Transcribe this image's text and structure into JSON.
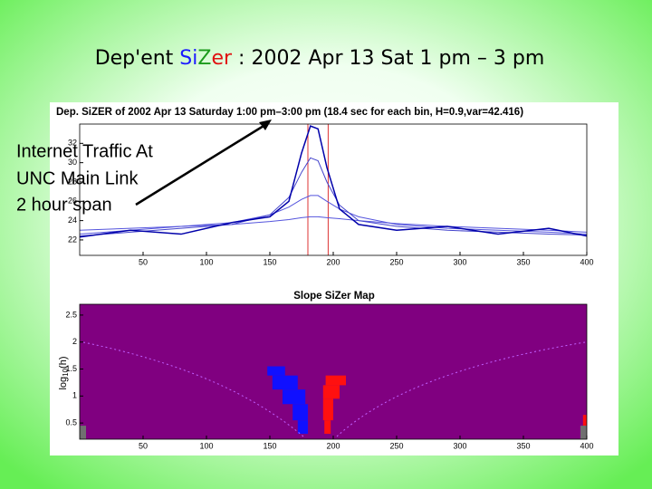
{
  "slide": {
    "title_parts": [
      {
        "text": "Dep'ent ",
        "color": "#000000"
      },
      {
        "text": "Si",
        "color": "#1a1aff"
      },
      {
        "text": "Z",
        "color": "#1a9a1a"
      },
      {
        "text": "er",
        "color": "#e01010"
      },
      {
        "text": " : 2002 Apr 13 Sat 1 pm – 3 pm",
        "color": "#000000"
      }
    ],
    "annotation": [
      "Internet Traffic At",
      "UNC Main Link",
      "2 hour span"
    ]
  },
  "chart_data": [
    {
      "type": "line",
      "title": "Dep. SiZER of 2002 Apr 13 Saturday 1:00 pm–3:00 pm (18.4 sec for each bin, H=0.9,var=42.416)",
      "x": [
        0,
        40,
        80,
        120,
        150,
        165,
        175,
        182,
        188,
        195,
        205,
        220,
        250,
        290,
        330,
        370,
        400
      ],
      "series": [
        {
          "color": "#5555dd",
          "values": [
            23.0,
            23.2,
            23.4,
            23.6,
            23.9,
            24.1,
            24.3,
            24.4,
            24.4,
            24.3,
            24.2,
            24.0,
            23.7,
            23.4,
            23.2,
            23.0,
            22.8
          ]
        },
        {
          "color": "#5555dd",
          "values": [
            22.6,
            23.0,
            23.4,
            23.8,
            24.6,
            25.4,
            26.2,
            26.6,
            26.6,
            26.0,
            25.2,
            24.4,
            23.6,
            23.2,
            23.0,
            22.8,
            22.6
          ]
        },
        {
          "color": "#4444cc",
          "values": [
            22.4,
            22.8,
            23.2,
            23.6,
            24.6,
            26.4,
            29.0,
            30.5,
            30.2,
            28.0,
            25.6,
            24.0,
            23.4,
            23.0,
            22.8,
            22.6,
            22.5
          ]
        },
        {
          "color": "#0000aa",
          "values": [
            22.3,
            23.0,
            22.6,
            23.8,
            24.4,
            26.0,
            31.0,
            33.8,
            33.5,
            29.5,
            25.2,
            23.6,
            23.0,
            23.4,
            22.6,
            23.2,
            22.4
          ]
        }
      ],
      "vlines": [
        180,
        196
      ],
      "vline_color": "#dd3333",
      "xlim": [
        0,
        400
      ],
      "xticks": [
        50,
        100,
        150,
        200,
        250,
        300,
        350,
        400
      ],
      "ylim": [
        20.4,
        34
      ],
      "yticks": [
        22,
        24,
        26,
        28,
        30,
        32
      ]
    },
    {
      "type": "map",
      "title": "Slope SiZer Map",
      "ylabel_parts": [
        "log",
        "10",
        "(h)"
      ],
      "background": "#800080",
      "regions": [
        {
          "color": "#1010ff",
          "cells": [
            [
              148,
              162,
              1.38,
              1.55
            ],
            [
              152,
              172,
              1.12,
              1.38
            ],
            [
              160,
              178,
              0.85,
              1.12
            ],
            [
              168,
              180,
              0.55,
              0.85
            ],
            [
              172,
              180,
              0.3,
              0.55
            ]
          ]
        },
        {
          "color": "#ff1010",
          "cells": [
            [
              194,
              210,
              1.2,
              1.38
            ],
            [
              192,
              205,
              0.95,
              1.2
            ],
            [
              192,
              200,
              0.55,
              0.95
            ],
            [
              193,
              198,
              0.3,
              0.55
            ],
            [
              397,
              400,
              0.45,
              0.65
            ]
          ]
        },
        {
          "color": "#707070",
          "cells": [
            [
              0,
              5,
              0.2,
              0.45
            ],
            [
              395,
              400,
              0.2,
              0.45
            ]
          ]
        }
      ],
      "xlim": [
        0,
        400
      ],
      "xticks": [
        50,
        100,
        150,
        200,
        250,
        300,
        350,
        400
      ],
      "ylim": [
        0.2,
        2.7
      ],
      "yticks": [
        0.5,
        1,
        1.5,
        2,
        2.5
      ]
    }
  ]
}
